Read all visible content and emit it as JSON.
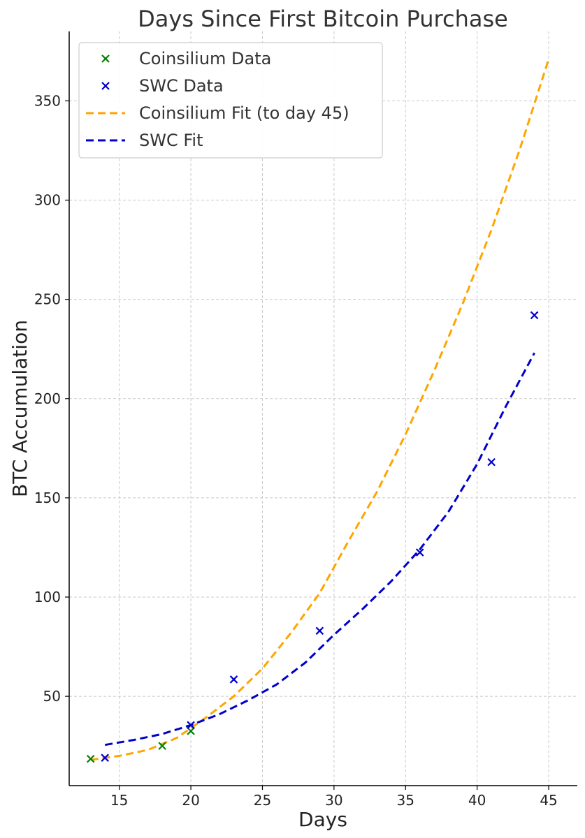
{
  "chart_data": {
    "type": "scatter",
    "title": "Days Since First Bitcoin Purchase",
    "xlabel": "Days",
    "ylabel": "BTC Accumulation",
    "xlim": [
      11.5,
      47
    ],
    "ylim": [
      5,
      385
    ],
    "xticks": [
      15,
      20,
      25,
      30,
      35,
      40,
      45
    ],
    "yticks": [
      50,
      100,
      150,
      200,
      250,
      300,
      350
    ],
    "grid": true,
    "legend_position": "top-left",
    "series": [
      {
        "name": "Coinsilium Data",
        "kind": "scatter",
        "marker": "x",
        "color": "#008000",
        "x": [
          13,
          18,
          20
        ],
        "y": [
          18.5,
          25,
          32.5
        ]
      },
      {
        "name": "SWC Data",
        "kind": "scatter",
        "marker": "x",
        "color": "#0000cc",
        "x": [
          14,
          20,
          23,
          29,
          36,
          41,
          44
        ],
        "y": [
          19,
          35.5,
          58.5,
          83,
          122.5,
          168,
          242
        ]
      },
      {
        "name": "Coinsilium Fit (to day 45)",
        "kind": "line",
        "dash": true,
        "color": "#ffa500",
        "x": [
          13,
          15,
          17,
          19,
          21,
          23,
          25,
          27,
          29,
          31,
          33,
          35,
          37,
          39,
          41,
          43,
          45
        ],
        "y": [
          18,
          20,
          23,
          29,
          39,
          50,
          64,
          82,
          102,
          128,
          153,
          182,
          214,
          248,
          285,
          326,
          371
        ]
      },
      {
        "name": "SWC Fit",
        "kind": "line",
        "dash": true,
        "color": "#0000cc",
        "x": [
          14,
          16,
          18,
          20,
          22,
          24,
          26,
          28,
          30,
          32,
          34,
          36,
          38,
          40,
          42,
          44
        ],
        "y": [
          25.5,
          28,
          31,
          35.5,
          41,
          48,
          56,
          67,
          81,
          94,
          108,
          124,
          143,
          167,
          196,
          223
        ]
      }
    ]
  }
}
